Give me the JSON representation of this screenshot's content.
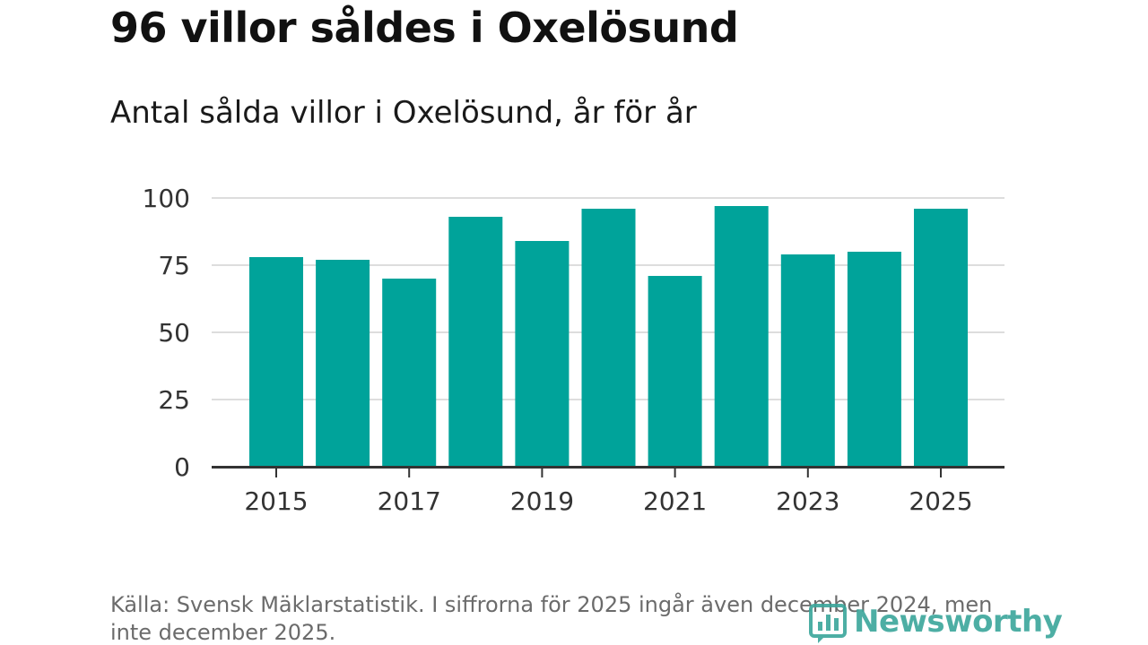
{
  "title": "96 villor såldes i Oxelösund",
  "subtitle": "Antal sålda villor i Oxelösund, år för år",
  "source": "Källa: Svensk Mäklarstatistik. I siffrorna för 2025 ingår även december 2024, men inte december 2025.",
  "brand": {
    "name": "Newsworthy",
    "icon": "bar-chart-logo-icon",
    "color": "#3aa69b"
  },
  "colors": {
    "bar": "#00a39a",
    "grid": "#dddddd",
    "axis": "#333333"
  },
  "chart_data": {
    "type": "bar",
    "title": "96 villor såldes i Oxelösund",
    "subtitle": "Antal sålda villor i Oxelösund, år för år",
    "xlabel": "",
    "ylabel": "",
    "categories": [
      "2015",
      "2016",
      "2017",
      "2018",
      "2019",
      "2020",
      "2021",
      "2022",
      "2023",
      "2024",
      "2025"
    ],
    "values": [
      78,
      77,
      70,
      93,
      84,
      96,
      71,
      97,
      79,
      80,
      96
    ],
    "ylim": [
      0,
      100
    ],
    "yticks": [
      0,
      25,
      50,
      75,
      100
    ],
    "xticks": [
      "2015",
      "2017",
      "2019",
      "2021",
      "2023",
      "2025"
    ],
    "grid": true
  }
}
